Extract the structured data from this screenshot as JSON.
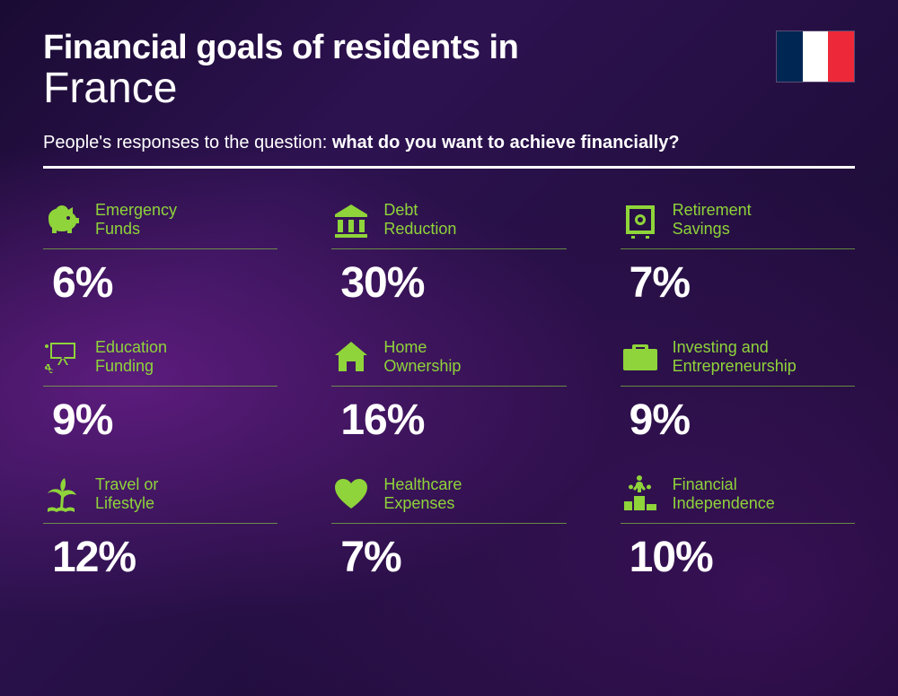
{
  "header": {
    "title_line1": "Financial goals of residents in",
    "title_line2": "France",
    "subtitle_prefix": "People's responses to the question: ",
    "subtitle_bold": "what do you want to achieve financially?"
  },
  "flag": {
    "stripe1": "#002654",
    "stripe2": "#ffffff",
    "stripe3": "#ed2939"
  },
  "styling": {
    "accent_color": "#8fd43a",
    "text_color": "#ffffff",
    "title_line1_fontsize": 38,
    "title_line2_fontsize": 48,
    "subtitle_fontsize": 20,
    "label_fontsize": 18,
    "value_fontsize": 48,
    "icon_size": 44,
    "divider_color": "#ffffff",
    "cell_underline_color": "rgba(140, 220, 60, 0.6)",
    "background_gradient": "radial purple/indigo"
  },
  "goals": [
    {
      "name": "emergency-funds",
      "label_l1": "Emergency",
      "label_l2": "Funds",
      "value": "6%",
      "icon": "piggy-bank"
    },
    {
      "name": "debt-reduction",
      "label_l1": "Debt",
      "label_l2": "Reduction",
      "value": "30%",
      "icon": "bank"
    },
    {
      "name": "retirement-savings",
      "label_l1": "Retirement",
      "label_l2": "Savings",
      "value": "7%",
      "icon": "safe"
    },
    {
      "name": "education-funding",
      "label_l1": "Education",
      "label_l2": "Funding",
      "value": "9%",
      "icon": "presentation"
    },
    {
      "name": "home-ownership",
      "label_l1": "Home",
      "label_l2": "Ownership",
      "value": "16%",
      "icon": "house"
    },
    {
      "name": "investing-entrepreneurship",
      "label_l1": "Investing and",
      "label_l2": "Entrepreneurship",
      "value": "9%",
      "icon": "briefcase"
    },
    {
      "name": "travel-lifestyle",
      "label_l1": "Travel or",
      "label_l2": "Lifestyle",
      "value": "12%",
      "icon": "island"
    },
    {
      "name": "healthcare-expenses",
      "label_l1": "Healthcare",
      "label_l2": "Expenses",
      "value": "7%",
      "icon": "heart-pulse"
    },
    {
      "name": "financial-independence",
      "label_l1": "Financial",
      "label_l2": "Independence",
      "value": "10%",
      "icon": "podium"
    }
  ]
}
